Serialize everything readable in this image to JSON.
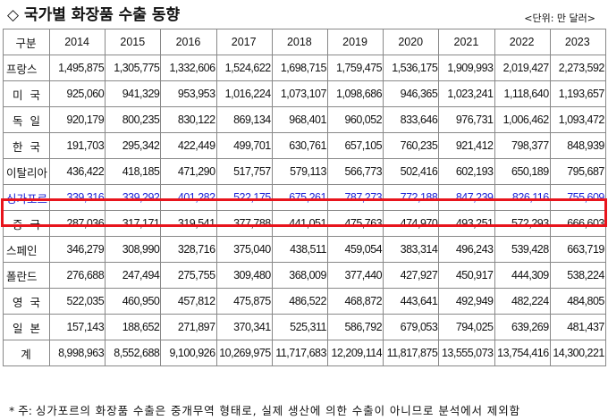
{
  "title": "◇ 국가별 화장품 수출 동향",
  "unit": "<단위: 만 달러>",
  "table": {
    "corner": "구분",
    "years": [
      "2014",
      "2015",
      "2016",
      "2017",
      "2018",
      "2019",
      "2020",
      "2021",
      "2022",
      "2023"
    ],
    "rows": [
      {
        "country": "프랑스",
        "values": [
          "1,495,875",
          "1,305,775",
          "1,332,606",
          "1,524,622",
          "1,698,715",
          "1,759,475",
          "1,536,175",
          "1,909,993",
          "2,019,427",
          "2,273,592"
        ]
      },
      {
        "country": "미 국",
        "values": [
          "925,060",
          "941,329",
          "953,953",
          "1,016,224",
          "1,073,107",
          "1,098,686",
          "946,365",
          "1,023,241",
          "1,118,640",
          "1,193,657"
        ]
      },
      {
        "country": "독 일",
        "values": [
          "920,179",
          "800,235",
          "830,122",
          "869,134",
          "968,401",
          "960,052",
          "833,646",
          "976,731",
          "1,006,462",
          "1,093,472"
        ]
      },
      {
        "country": "한 국",
        "values": [
          "191,703",
          "295,342",
          "422,449",
          "499,701",
          "630,761",
          "657,105",
          "760,235",
          "921,412",
          "798,377",
          "848,939"
        ]
      },
      {
        "country": "이탈리아",
        "values": [
          "436,422",
          "418,185",
          "471,290",
          "517,757",
          "579,113",
          "566,773",
          "502,416",
          "602,193",
          "650,189",
          "795,687"
        ]
      },
      {
        "country": "싱가포르",
        "values": [
          "339,316",
          "339,292",
          "401,282",
          "522,175",
          "675,261",
          "787,273",
          "772,188",
          "847,239",
          "826,116",
          "755,609"
        ]
      },
      {
        "country": "중 국",
        "values": [
          "287,036",
          "317,171",
          "319,541",
          "377,788",
          "441,051",
          "475,763",
          "474,970",
          "493,251",
          "572,293",
          "666,603"
        ]
      },
      {
        "country": "스페인",
        "values": [
          "346,279",
          "308,990",
          "328,716",
          "375,040",
          "438,511",
          "459,054",
          "383,314",
          "496,243",
          "539,428",
          "663,719"
        ]
      },
      {
        "country": "폴란드",
        "values": [
          "276,688",
          "247,494",
          "275,755",
          "309,480",
          "368,009",
          "377,440",
          "427,927",
          "450,917",
          "444,309",
          "538,224"
        ]
      },
      {
        "country": "영 국",
        "values": [
          "522,035",
          "460,950",
          "457,812",
          "475,875",
          "486,522",
          "468,872",
          "443,641",
          "492,949",
          "482,224",
          "484,805"
        ]
      },
      {
        "country": "일 본",
        "values": [
          "157,143",
          "188,652",
          "271,897",
          "370,341",
          "525,311",
          "586,792",
          "679,053",
          "794,025",
          "639,269",
          "481,437"
        ]
      },
      {
        "country": "계",
        "values": [
          "8,998,963",
          "8,552,688",
          "9,100,926",
          "10,269,975",
          "11,717,683",
          "12,209,114",
          "11,817,875",
          "13,555,073",
          "13,754,416",
          "14,300,221"
        ]
      }
    ]
  },
  "highlight_color": "#e8141c",
  "highlight_text_color": "#1f24d6",
  "footnote": {
    "prefix": "* 주: ",
    "text": "싱가포르의 화장품 수출은 중개무역 형태로, 실제 생산에 의한 수출이 아니므로 분석에서 제외함"
  }
}
